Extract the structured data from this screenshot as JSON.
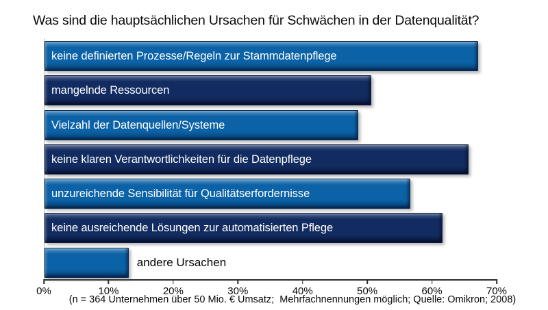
{
  "chart_data": {
    "type": "bar",
    "orientation": "horizontal",
    "title": "Was sind die hauptsächlichen Ursachen für Schwächen in der Datenqualität?",
    "categories": [
      "keine definierten Prozesse/Regeln zur Stammdatenpflege",
      "mangelnde Ressourcen",
      "Vielzahl der Datenquellen/Systeme",
      "keine klaren Verantwortlichkeiten für die Datenpflege",
      "unzureichende Sensibilität für Qualitätserfordernisse",
      "keine ausreichende Lösungen zur automatisierten Pflege",
      "andere Ursachen"
    ],
    "values": [
      67,
      50.5,
      48.5,
      65.5,
      56.5,
      61.5,
      13
    ],
    "unit": "%",
    "bar_styles": [
      "light",
      "dark",
      "light",
      "dark",
      "light",
      "dark",
      "light"
    ],
    "label_inside": [
      true,
      true,
      true,
      true,
      true,
      true,
      false
    ],
    "xlim": [
      0,
      70
    ],
    "x_ticks": [
      "0%",
      "10%",
      "20%",
      "30%",
      "40%",
      "50%",
      "60%",
      "70%"
    ],
    "grid": false,
    "legend": "none",
    "footnote": "(n = 364 Unternehmen über 50 Mio. € Umsatz;  Mehrfachnennungen möglich; Quelle: Omikron; 2008)"
  },
  "colors": {
    "light_blue": "#0b62a6",
    "dark_blue": "#122c61",
    "bar_text": "#ffffff",
    "axis_text": "#0a0a0a",
    "background": "#ffffff"
  }
}
